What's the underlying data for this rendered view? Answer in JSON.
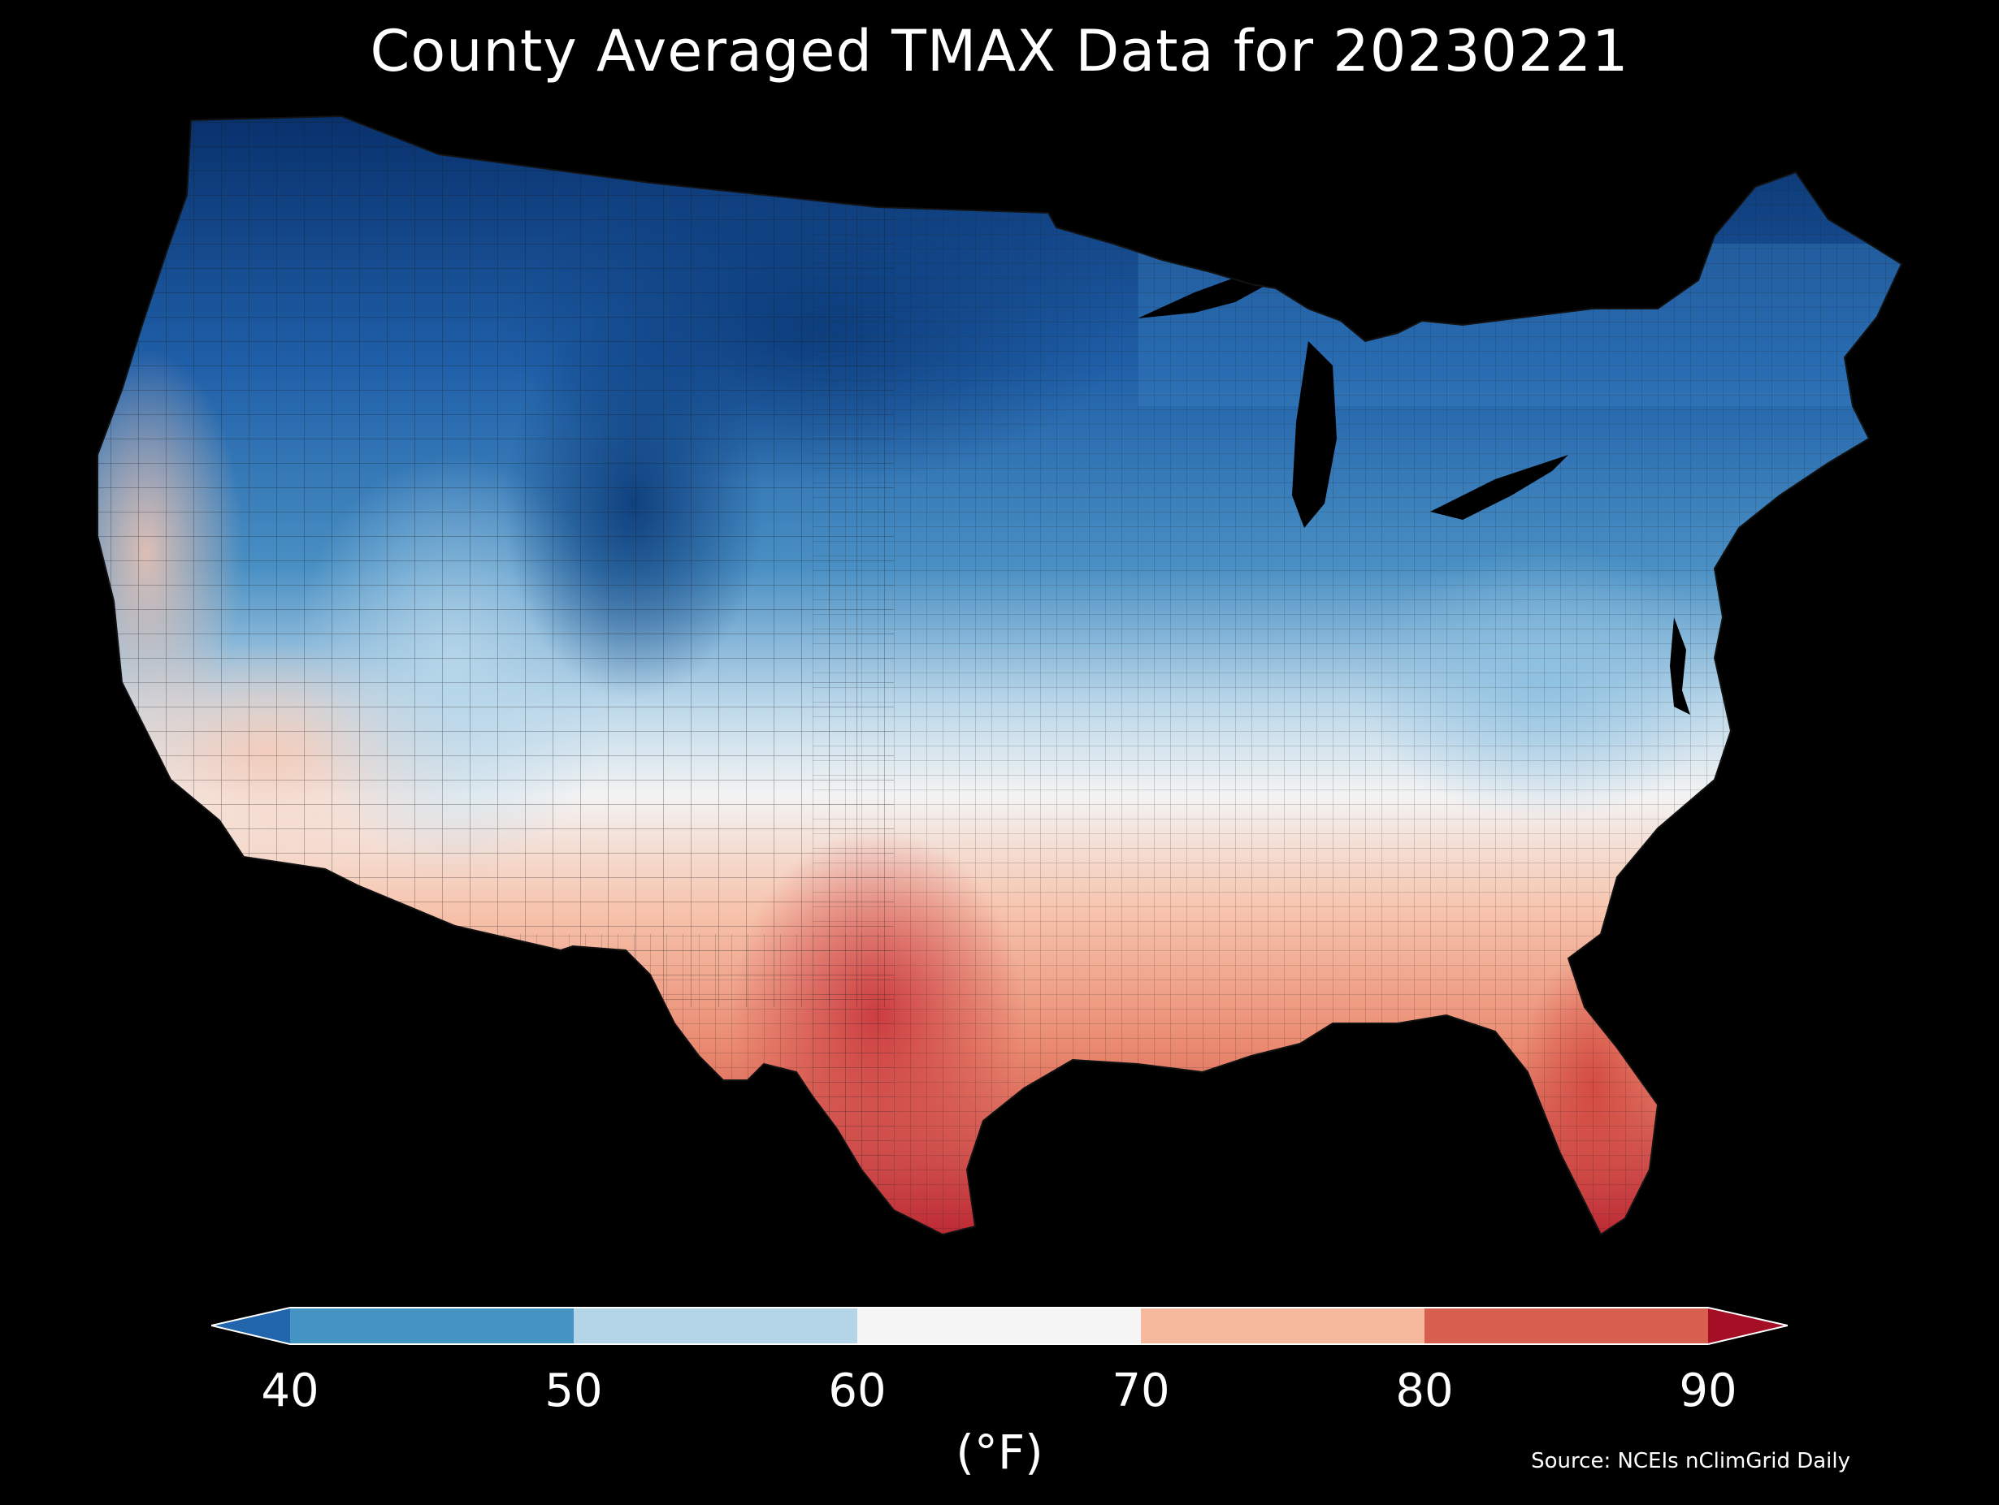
{
  "title": "County Averaged TMAX Data for 20230221",
  "colorbar": {
    "unit": "(°F)",
    "ticks": [
      "40",
      "50",
      "60",
      "70",
      "80",
      "90"
    ],
    "bins": [
      {
        "min": null,
        "max": 40,
        "color": "#2166ac",
        "label": "< 40"
      },
      {
        "min": 40,
        "max": 50,
        "color": "#4393c3",
        "label": "40–50"
      },
      {
        "min": 50,
        "max": 60,
        "color": "#b4d5e8",
        "label": "50–60"
      },
      {
        "min": 60,
        "max": 70,
        "color": "#f5f5f5",
        "label": "60–70"
      },
      {
        "min": 70,
        "max": 80,
        "color": "#f6b99e",
        "label": "70–80"
      },
      {
        "min": 80,
        "max": 90,
        "color": "#d6604d",
        "label": "80–90"
      },
      {
        "min": 90,
        "max": null,
        "color": "#a50f26",
        "label": "> 90"
      }
    ],
    "extend": "both"
  },
  "source": "Source: NCEIs nClimGrid Daily",
  "colors": {
    "background": "#000000",
    "text": "#ffffff"
  }
}
